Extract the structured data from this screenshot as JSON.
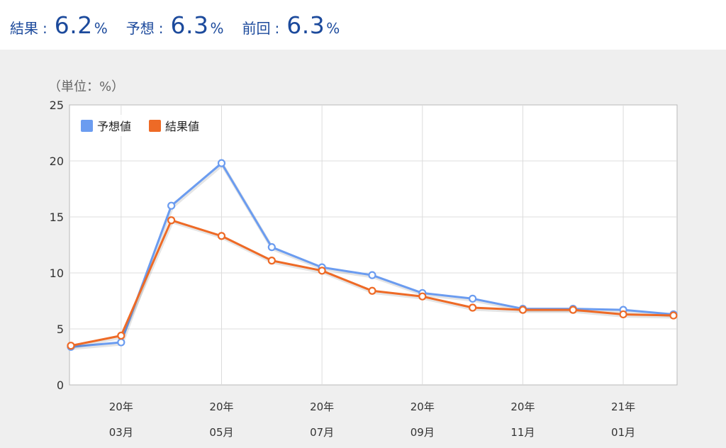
{
  "summary": {
    "result_label": "結果",
    "result_value": "6.2",
    "forecast_label": "予想",
    "forecast_value": "6.3",
    "previous_label": "前回",
    "previous_value": "6.3",
    "separator": ":",
    "unit": "%"
  },
  "colors": {
    "accent_text": "#1c4a9c",
    "forecast": "#6b9cf0",
    "result": "#ee6a26"
  },
  "chart_data": {
    "type": "line",
    "unit_label": "（単位：%）",
    "x": [
      "20年02月",
      "20年03月",
      "20年04月",
      "20年05月",
      "20年06月",
      "20年07月",
      "20年08月",
      "20年09月",
      "20年10月",
      "20年11月",
      "20年12月",
      "21年01月",
      "21年02月"
    ],
    "tick_labels": [
      {
        "line1": "20年",
        "line2": "03月"
      },
      {
        "line1": "20年",
        "line2": "05月"
      },
      {
        "line1": "20年",
        "line2": "07月"
      },
      {
        "line1": "20年",
        "line2": "09月"
      },
      {
        "line1": "20年",
        "line2": "11月"
      },
      {
        "line1": "21年",
        "line2": "01月"
      }
    ],
    "series": [
      {
        "name": "予想値",
        "color": "#6b9cf0",
        "values": [
          3.4,
          3.8,
          16.0,
          19.8,
          12.3,
          10.5,
          9.8,
          8.2,
          7.7,
          6.8,
          6.8,
          6.7,
          6.3
        ]
      },
      {
        "name": "結果値",
        "color": "#ee6a26",
        "values": [
          3.5,
          4.4,
          14.7,
          13.3,
          11.1,
          10.2,
          8.4,
          7.9,
          6.9,
          6.7,
          6.7,
          6.3,
          6.2
        ]
      }
    ],
    "ylim": [
      0,
      25
    ],
    "yticks": [
      0,
      5,
      10,
      15,
      20,
      25
    ],
    "grid": true,
    "legend_position": "top-left"
  }
}
